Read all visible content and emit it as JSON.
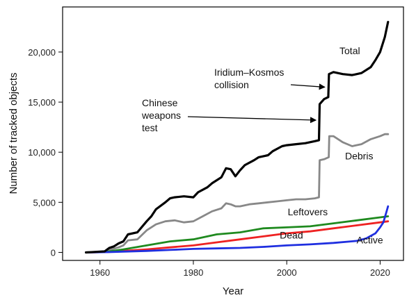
{
  "chart_data": {
    "type": "line",
    "title": "",
    "xlabel": "Year",
    "ylabel": "Number of tracked objects",
    "xlim": [
      1952,
      2025
    ],
    "ylim": [
      -800,
      24500
    ],
    "xticks": [
      1960,
      1980,
      2000,
      2020
    ],
    "yticks": [
      0,
      5000,
      10000,
      15000,
      20000
    ],
    "xtick_labels": [
      "1960",
      "1980",
      "2000",
      "2020"
    ],
    "ytick_labels": [
      "0",
      "5,000",
      "10,000",
      "15,000",
      "20,000"
    ],
    "grid": false,
    "legend": "none",
    "series": [
      {
        "name": "Total",
        "color": "#000000",
        "x": [
          1957,
          1961,
          1962,
          1963,
          1964,
          1965,
          1966,
          1968,
          1970,
          1971,
          1972,
          1974,
          1975,
          1976,
          1978,
          1980,
          1981,
          1983,
          1984,
          1986,
          1987,
          1988,
          1989,
          1990,
          1991,
          1993,
          1994,
          1996,
          1997,
          1999,
          2000,
          2002,
          2004,
          2006,
          2006.9,
          2007.05,
          2008,
          2008.9,
          2009.05,
          2010,
          2012,
          2014,
          2016,
          2018,
          2019,
          2020,
          2021,
          2021.7
        ],
        "y": [
          0,
          100,
          450,
          600,
          900,
          1100,
          1800,
          2000,
          3100,
          3600,
          4300,
          5000,
          5400,
          5500,
          5600,
          5500,
          6000,
          6500,
          6900,
          7500,
          8400,
          8300,
          7600,
          8200,
          8700,
          9200,
          9500,
          9700,
          10100,
          10600,
          10700,
          10800,
          10900,
          11100,
          11200,
          14800,
          15300,
          15500,
          17800,
          18000,
          17800,
          17700,
          17900,
          18500,
          19200,
          20000,
          21500,
          23000
        ]
      },
      {
        "name": "Debris",
        "color": "#888888",
        "x": [
          1957,
          1961,
          1962,
          1964,
          1965,
          1966,
          1968,
          1970,
          1972,
          1974,
          1976,
          1978,
          1980,
          1982,
          1984,
          1986,
          1987,
          1988,
          1989,
          1990,
          1992,
          1994,
          1996,
          1998,
          2000,
          2002,
          2004,
          2006,
          2006.9,
          2007.05,
          2008,
          2009,
          2009.1,
          2010,
          2012,
          2014,
          2016,
          2018,
          2020,
          2021,
          2021.7
        ],
        "y": [
          0,
          50,
          250,
          500,
          700,
          1200,
          1300,
          2200,
          2800,
          3100,
          3200,
          3000,
          3100,
          3600,
          4100,
          4400,
          4900,
          4800,
          4600,
          4600,
          4800,
          4900,
          5000,
          5100,
          5200,
          5300,
          5300,
          5400,
          5500,
          9200,
          9300,
          9500,
          11600,
          11600,
          11000,
          10600,
          10800,
          11300,
          11600,
          11800,
          11800
        ]
      },
      {
        "name": "Leftovers",
        "color": "#1f8a1f",
        "x": [
          1957,
          1962,
          1965,
          1970,
          1975,
          1980,
          1985,
          1990,
          1995,
          2000,
          2005,
          2010,
          2015,
          2020,
          2021.7
        ],
        "y": [
          0,
          100,
          300,
          700,
          1100,
          1300,
          1800,
          2000,
          2400,
          2500,
          2600,
          2900,
          3200,
          3500,
          3600
        ]
      },
      {
        "name": "Dead",
        "color": "#ee2222",
        "x": [
          1957,
          1962,
          1965,
          1970,
          1975,
          1980,
          1985,
          1990,
          1995,
          2000,
          2005,
          2010,
          2015,
          2020,
          2021.7
        ],
        "y": [
          0,
          50,
          150,
          300,
          500,
          700,
          1000,
          1300,
          1600,
          1900,
          2100,
          2400,
          2700,
          3000,
          3100
        ]
      },
      {
        "name": "Active",
        "color": "#1f2fe0",
        "x": [
          1957,
          1962,
          1965,
          1970,
          1975,
          1980,
          1985,
          1990,
          1995,
          2000,
          2005,
          2010,
          2015,
          2017,
          2019,
          2020,
          2020.7,
          2021.2,
          2021.7
        ],
        "y": [
          0,
          30,
          80,
          150,
          250,
          350,
          400,
          450,
          550,
          700,
          800,
          950,
          1150,
          1400,
          1900,
          2500,
          3000,
          3800,
          4600
        ]
      }
    ],
    "annotations": [
      {
        "lines": [
          "Iridium–Kosmos",
          "collision"
        ],
        "arrow_to_year": 2008.6,
        "arrow_to_value": 16500
      },
      {
        "lines": [
          "Chinese",
          "weapons",
          "test"
        ],
        "arrow_to_year": 2006.7,
        "arrow_to_value": 13200
      }
    ]
  }
}
